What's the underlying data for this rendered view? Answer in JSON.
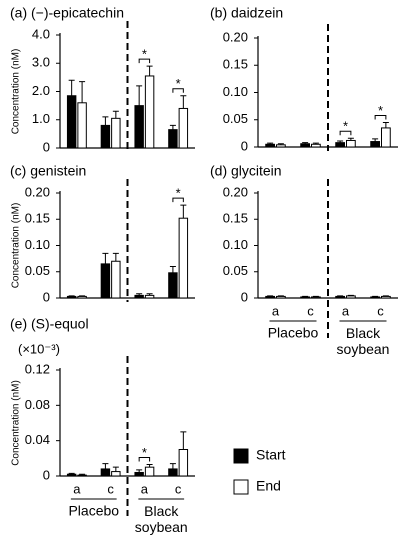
{
  "chart_data": [
    {
      "type": "bar",
      "title": "(a) (−)-epicatechin",
      "ylabel": "Concentration (nM)",
      "ylim": [
        0,
        4
      ],
      "yticks": [
        0,
        {
          "value": 1,
          "label": "1.0"
        },
        {
          "value": 2,
          "label": "2.0"
        },
        {
          "value": 3,
          "label": "3.0"
        },
        {
          "value": 4,
          "label": "4.0"
        }
      ],
      "categories": [
        null,
        null,
        null,
        null
      ],
      "series": [
        {
          "name": "Start",
          "color": "#000000",
          "values": [
            1.85,
            0.8,
            1.5,
            0.65
          ],
          "errors": [
            0.55,
            0.3,
            0.7,
            0.15
          ]
        },
        {
          "name": "End",
          "color": "#ffffff",
          "values": [
            1.6,
            1.05,
            2.55,
            1.4
          ],
          "errors": [
            0.75,
            0.25,
            0.35,
            0.45
          ]
        }
      ],
      "significance": [
        null,
        null,
        "*",
        "*"
      ]
    },
    {
      "type": "bar",
      "title": "(b) daidzein",
      "ylim": [
        0,
        0.2
      ],
      "yticks": [
        0,
        0.05,
        {
          "value": 0.1,
          "label": "0.10"
        },
        0.15,
        {
          "value": 0.2,
          "label": "0.20"
        }
      ],
      "categories": [
        null,
        null,
        null,
        null
      ],
      "series": [
        {
          "name": "Start",
          "color": "#000000",
          "values": [
            0.005,
            0.006,
            0.008,
            0.01
          ],
          "errors": [
            0.002,
            0.002,
            0.003,
            0.005
          ]
        },
        {
          "name": "End",
          "color": "#ffffff",
          "values": [
            0.004,
            0.005,
            0.012,
            0.035
          ],
          "errors": [
            0.002,
            0.002,
            0.004,
            0.01
          ]
        }
      ],
      "significance": [
        null,
        null,
        "*",
        "*"
      ]
    },
    {
      "type": "bar",
      "title": "(c) genistein",
      "ylabel": "Concentration (nM)",
      "ylim": [
        0,
        0.2
      ],
      "yticks": [
        0,
        0.05,
        {
          "value": 0.1,
          "label": "0.10"
        },
        0.15,
        {
          "value": 0.2,
          "label": "0.20"
        }
      ],
      "categories": [
        null,
        null,
        null,
        null
      ],
      "series": [
        {
          "name": "Start",
          "color": "#000000",
          "values": [
            0.003,
            0.065,
            0.005,
            0.048
          ],
          "errors": [
            0.001,
            0.02,
            0.003,
            0.012
          ]
        },
        {
          "name": "End",
          "color": "#ffffff",
          "values": [
            0.003,
            0.07,
            0.005,
            0.152
          ],
          "errors": [
            0.001,
            0.015,
            0.003,
            0.025
          ]
        }
      ],
      "significance": [
        null,
        null,
        null,
        "*"
      ]
    },
    {
      "type": "bar",
      "title": "(d) glycitein",
      "ylim": [
        0,
        0.2
      ],
      "yticks": [
        0,
        0.05,
        {
          "value": 0.1,
          "label": "0.10"
        },
        0.15,
        {
          "value": 0.2,
          "label": "0.20"
        }
      ],
      "categories": [
        "a",
        "c",
        "a",
        "c"
      ],
      "groups": [
        "Placebo",
        "Black soybean"
      ],
      "series": [
        {
          "name": "Start",
          "color": "#000000",
          "values": [
            0.003,
            0.002,
            0.003,
            0.002
          ],
          "errors": [
            0.001,
            0.001,
            0.001,
            0.001
          ]
        },
        {
          "name": "End",
          "color": "#ffffff",
          "values": [
            0.003,
            0.002,
            0.004,
            0.003
          ],
          "errors": [
            0.001,
            0.001,
            0.001,
            0.001
          ]
        }
      ],
      "significance": [
        null,
        null,
        null,
        null
      ]
    },
    {
      "type": "bar",
      "title": "(e) (S)-equol",
      "ylabel": "Concentration (nM)",
      "yunit": "(×10⁻³)",
      "ylim": [
        0,
        0.12
      ],
      "yticks": [
        0,
        0.04,
        0.08,
        0.12
      ],
      "categories": [
        "a",
        "c",
        "a",
        "c"
      ],
      "groups": [
        "Placebo",
        "Black soybean"
      ],
      "series": [
        {
          "name": "Start",
          "color": "#000000",
          "values": [
            0.002,
            0.008,
            0.004,
            0.008
          ],
          "errors": [
            0.001,
            0.006,
            0.003,
            0.006
          ]
        },
        {
          "name": "End",
          "color": "#ffffff",
          "values": [
            0.001,
            0.005,
            0.01,
            0.03
          ],
          "errors": [
            0.001,
            0.005,
            0.003,
            0.02
          ]
        }
      ],
      "significance": [
        null,
        null,
        "*",
        null
      ]
    }
  ]
}
